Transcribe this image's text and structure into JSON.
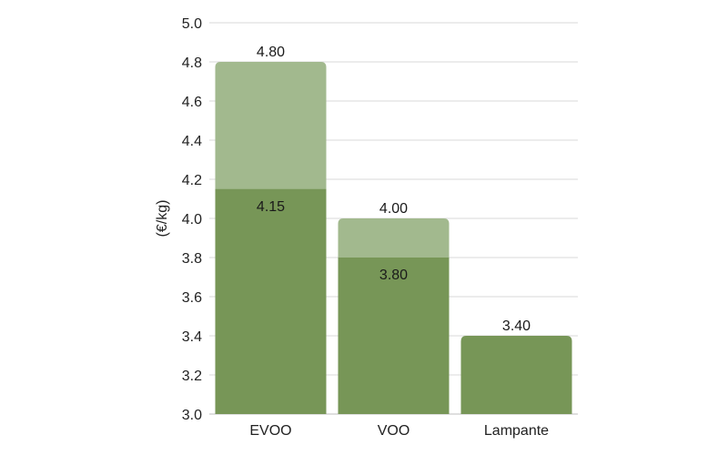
{
  "chart_data": {
    "type": "bar",
    "categories": [
      "EVOO",
      "VOO",
      "Lampante"
    ],
    "series": [
      {
        "values": [
          4.15,
          3.8,
          3.4
        ]
      },
      {
        "values": [
          4.8,
          4.0,
          3.4
        ]
      }
    ],
    "value_labels": {
      "low": [
        "4.15",
        "3.80",
        ""
      ],
      "high": [
        "4.80",
        "4.00",
        "3.40"
      ]
    },
    "title": "",
    "xlabel": "",
    "ylabel": "(€/kg)",
    "ylim": [
      3.0,
      5.0
    ],
    "yticks": [
      3.0,
      3.2,
      3.4,
      3.6,
      3.8,
      4.0,
      4.2,
      4.4,
      4.6,
      4.8,
      5.0
    ],
    "ytick_labels": [
      "3.0",
      "3.2",
      "3.4",
      "3.6",
      "3.8",
      "4.0",
      "4.2",
      "4.4",
      "4.6",
      "4.8",
      "5.0"
    ],
    "grid": true,
    "legend": "none",
    "colors": {
      "base": "#779657",
      "range": "#a2b98e"
    }
  }
}
